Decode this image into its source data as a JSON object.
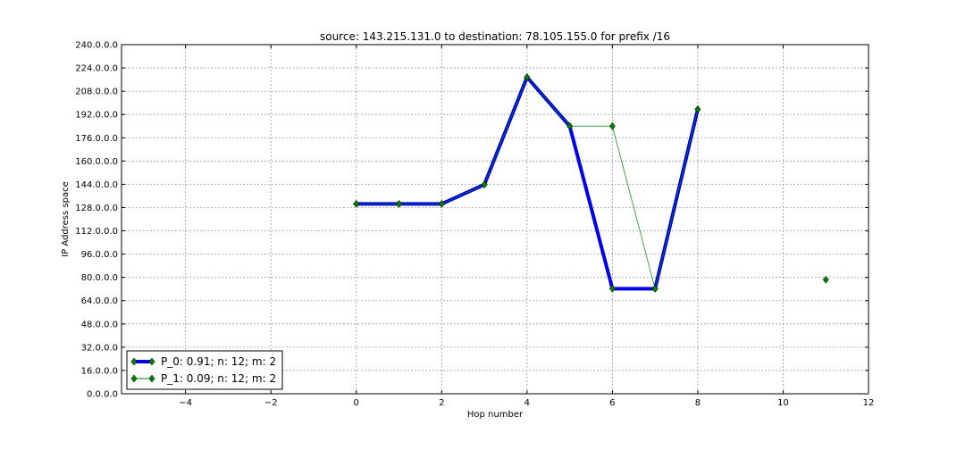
{
  "chart_data": {
    "type": "line",
    "title": "source: 143.215.131.0 to destination: 78.105.155.0 for prefix /16",
    "xlabel": "Hop number",
    "ylabel": "IP Address space",
    "xlim": [
      -5.5,
      12
    ],
    "ylim": [
      0,
      240
    ],
    "x_ticks": [
      -4,
      -2,
      0,
      2,
      4,
      6,
      8,
      10,
      12
    ],
    "x_tick_labels": [
      "−4",
      "−2",
      "0",
      "2",
      "4",
      "6",
      "8",
      "10",
      "12"
    ],
    "y_ticks": [
      0,
      16,
      32,
      48,
      64,
      80,
      96,
      112,
      128,
      144,
      160,
      176,
      192,
      208,
      224,
      240
    ],
    "y_tick_labels": [
      "0.0.0.0",
      "16.0.0.0",
      "32.0.0.0",
      "48.0.0.0",
      "64.0.0.0",
      "80.0.0.0",
      "96.0.0.0",
      "112.0.0.0",
      "128.0.0.0",
      "144.0.0.0",
      "160.0.0.0",
      "176.0.0.0",
      "192.0.0.0",
      "208.0.0.0",
      "224.0.0.0",
      "240.0.0.0"
    ],
    "grid": true,
    "legend_position": "lower-left",
    "series": [
      {
        "name": "P_0: 0.91; n: 12; m: 2",
        "color": "#0000ee",
        "x": [
          0,
          1,
          2,
          3,
          4,
          5,
          6,
          7,
          8
        ],
        "y": [
          130.5,
          130.5,
          130.5,
          143.8,
          217.6,
          184.0,
          72.2,
          72.2,
          195.6
        ]
      },
      {
        "name": "P_1: 0.09; n: 12; m: 2",
        "color": "#008000",
        "x": [
          0,
          1,
          2,
          3,
          4,
          5,
          6,
          7,
          8
        ],
        "y": [
          130.5,
          130.5,
          130.5,
          143.8,
          217.6,
          184.0,
          184.0,
          72.2,
          195.6
        ]
      }
    ],
    "extra_points": [
      {
        "x": 11,
        "y": 78.4
      }
    ]
  }
}
